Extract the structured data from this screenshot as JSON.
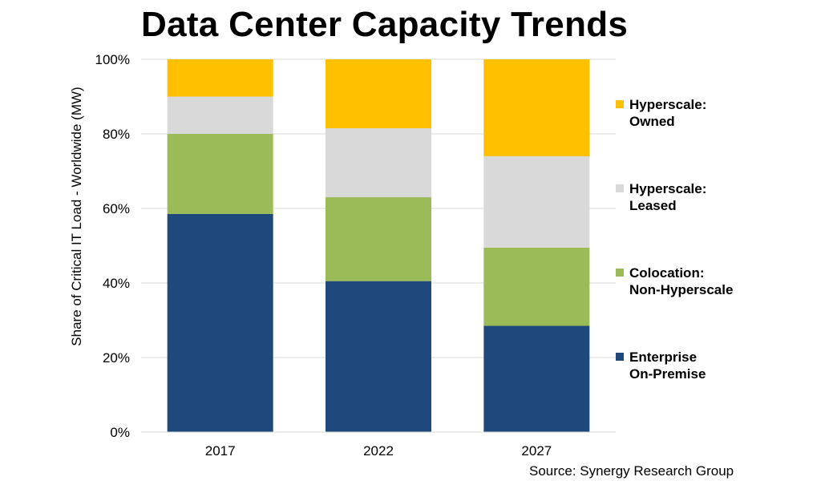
{
  "chart_data": {
    "type": "bar",
    "stacked": true,
    "title": "Data Center Capacity Trends",
    "ylabel": "Share of Critical IT Load - Worldwide (MW)",
    "xlabel": "",
    "ylim": [
      0,
      100
    ],
    "yticks": [
      "0%",
      "20%",
      "40%",
      "60%",
      "80%",
      "100%"
    ],
    "categories": [
      "2017",
      "2022",
      "2027"
    ],
    "series": [
      {
        "name": "Enterprise On-Premise",
        "name_lines": [
          "Enterprise",
          "On-Premise"
        ],
        "color": "#1f497d",
        "values": [
          58.5,
          40.5,
          28.5
        ]
      },
      {
        "name": "Colocation: Non-Hyperscale",
        "name_lines": [
          "Colocation:",
          "Non-Hyperscale"
        ],
        "color": "#9bbb59",
        "values": [
          21.5,
          22.5,
          21
        ]
      },
      {
        "name": "Hyperscale: Leased",
        "name_lines": [
          "Hyperscale:",
          "Leased"
        ],
        "color": "#d9d9d9",
        "values": [
          10,
          18.5,
          24.5
        ]
      },
      {
        "name": "Hyperscale: Owned",
        "name_lines": [
          "Hyperscale:",
          "Owned"
        ],
        "color": "#ffc000",
        "values": [
          10,
          18.5,
          26
        ]
      }
    ],
    "grid": true,
    "legend_position": "right",
    "source": "Source: Synergy Research Group"
  }
}
